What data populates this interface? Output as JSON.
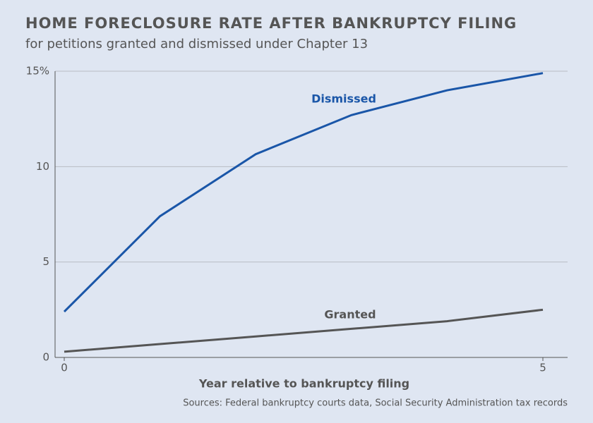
{
  "chart_data": {
    "type": "line",
    "title": "HOME FORECLOSURE RATE AFTER BANKRUPTCY FILING",
    "subtitle": "for petitions granted and dismissed under Chapter 13",
    "x_label": "Year relative to bankruptcy filing",
    "source": "Sources: Federal bankruptcy courts data, Social Security Administration tax records",
    "x": [
      0,
      1,
      2,
      3,
      4,
      5
    ],
    "series": [
      {
        "name": "Dismissed",
        "color": "#1a56a8",
        "values": [
          2.4,
          7.4,
          10.65,
          12.7,
          14.0,
          14.9
        ]
      },
      {
        "name": "Granted",
        "color": "#555555",
        "values": [
          0.3,
          0.7,
          1.1,
          1.5,
          1.9,
          2.5
        ]
      }
    ],
    "xlim": [
      0,
      5
    ],
    "xticks": [
      0,
      5
    ],
    "ylim": [
      0,
      15
    ],
    "yticks": [
      0,
      5,
      10,
      {
        "value": 15,
        "label": "15%"
      }
    ],
    "grid": true
  }
}
